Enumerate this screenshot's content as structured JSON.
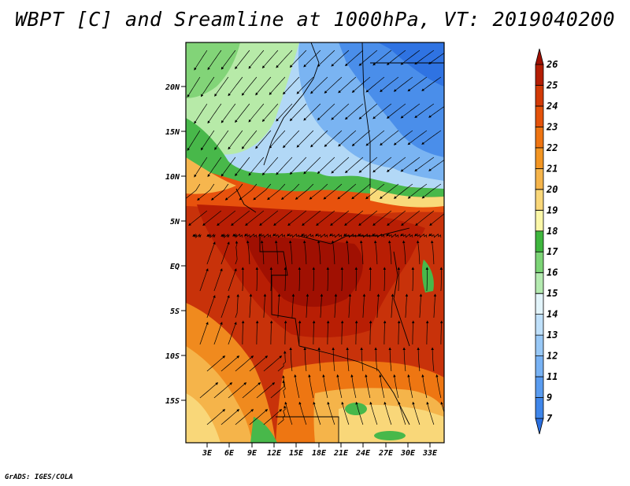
{
  "title": "WBPT [C] and Sreamline at 1000hPa, VT: 2019040200",
  "credit": "GrADS: IGES/COLA",
  "map": {
    "lat_labels": [
      "20N",
      "15N",
      "10N",
      "5N",
      "EQ",
      "5S",
      "10S",
      "15S"
    ],
    "lon_labels": [
      "3E",
      "6E",
      "9E",
      "12E",
      "15E",
      "18E",
      "21E",
      "24E",
      "27E",
      "30E",
      "33E"
    ]
  },
  "colorbar": {
    "labels": [
      "7",
      "9",
      "11",
      "12",
      "13",
      "14",
      "15",
      "16",
      "17",
      "18",
      "19",
      "20",
      "21",
      "22",
      "23",
      "24",
      "25",
      "26"
    ],
    "colors": [
      "#2a6fe0",
      "#3f86ea",
      "#5a9cf0",
      "#78b2f4",
      "#98c8f6",
      "#bfe0fa",
      "#e2f4fa",
      "#b4eab0",
      "#7cd476",
      "#3fb63e",
      "#fbf7a8",
      "#f9d779",
      "#f5b44a",
      "#f29522",
      "#ee7412",
      "#e4520a",
      "#d23a06",
      "#b41e04",
      "#9e1002"
    ]
  }
}
